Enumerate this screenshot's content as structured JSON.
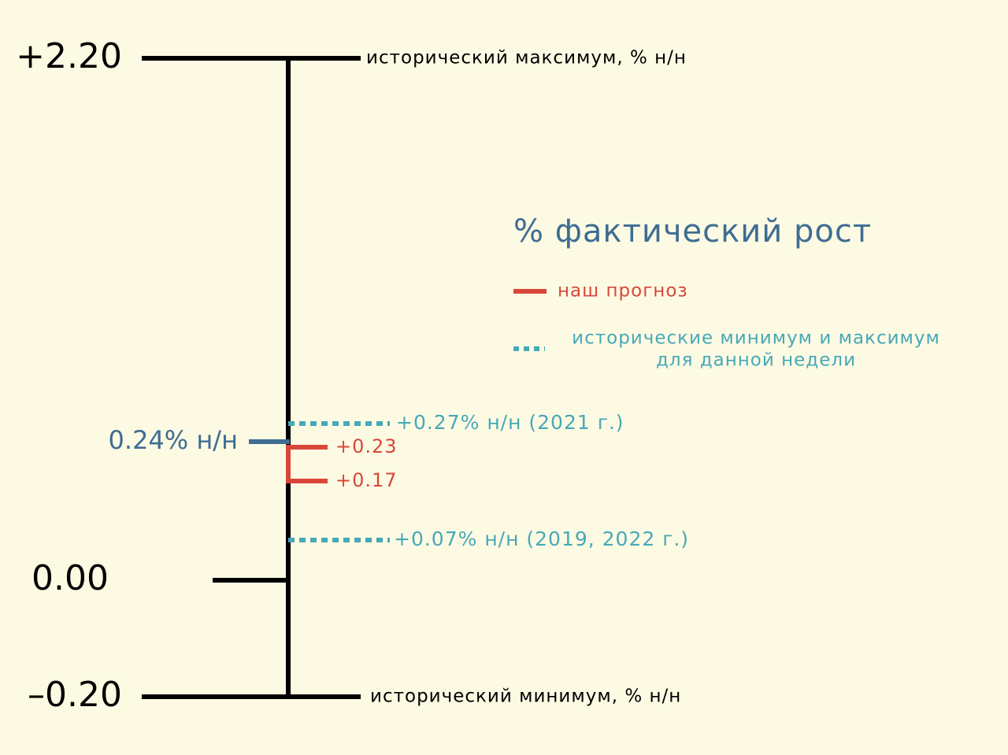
{
  "chart_data": {
    "type": "range-scale",
    "scale": {
      "ticks": [
        {
          "value": 2.2,
          "label": "+2.20",
          "note": "исторический максимум, % н/н"
        },
        {
          "value": 0.0,
          "label": "0.00",
          "note": ""
        },
        {
          "value": -0.2,
          "label": "–0.20",
          "note": "исторический минимум, % н/н"
        }
      ]
    },
    "actual": {
      "value": 0.24,
      "label": "0.24% н/н"
    },
    "forecast": {
      "high": 0.23,
      "low": 0.17,
      "high_label": "+0.23",
      "low_label": "+0.17"
    },
    "week_extremes": [
      {
        "value": 0.27,
        "label": "+0.27% н/н (2021 г.)"
      },
      {
        "value": 0.07,
        "label": "+0.07% н/н (2019, 2022 г.)"
      }
    ],
    "legend": {
      "title": "% фактический рост",
      "forecast": "наш прогноз",
      "extremes_line1": "исторические минимум и максимум",
      "extremes_line2": "для данной недели"
    },
    "colors": {
      "background": "#fdfae3",
      "axis": "#000000",
      "actual": "#3e6d93",
      "forecast": "#d9473a",
      "extremes": "#46a9b8"
    }
  }
}
